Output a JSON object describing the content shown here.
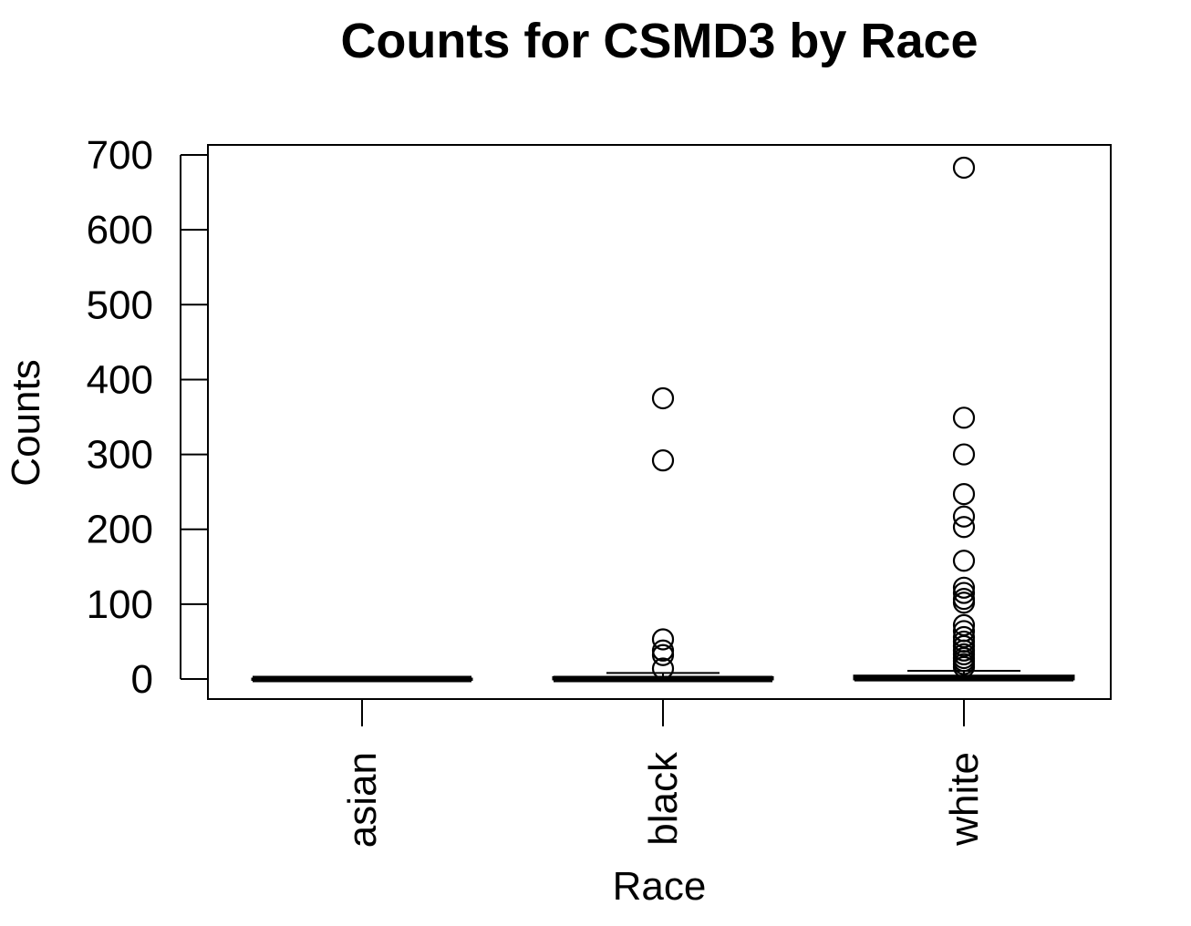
{
  "chart_data": {
    "type": "box",
    "title": "Counts for CSMD3 by Race",
    "xlabel": "Race",
    "ylabel": "Counts",
    "ylim": [
      -28,
      712
    ],
    "yticks": [
      0,
      100,
      200,
      300,
      400,
      500,
      600,
      700
    ],
    "categories": [
      "asian",
      "black",
      "white"
    ],
    "grid": false,
    "series": [
      {
        "category": "asian",
        "min": 0,
        "q1": 0,
        "median": 0,
        "q3": 0,
        "max": 0,
        "outliers": []
      },
      {
        "category": "black",
        "min": 0,
        "q1": 0,
        "median": 0,
        "q3": 2,
        "max": 8,
        "outliers": [
          375,
          292,
          53,
          38,
          32,
          14
        ]
      },
      {
        "category": "white",
        "min": 0,
        "q1": 0,
        "median": 1,
        "q3": 4,
        "max": 11,
        "outliers": [
          683,
          349,
          300,
          247,
          217,
          203,
          158,
          122,
          115,
          107,
          102,
          72,
          64,
          56,
          50,
          44,
          38,
          33,
          28,
          24,
          20,
          16
        ]
      }
    ]
  }
}
